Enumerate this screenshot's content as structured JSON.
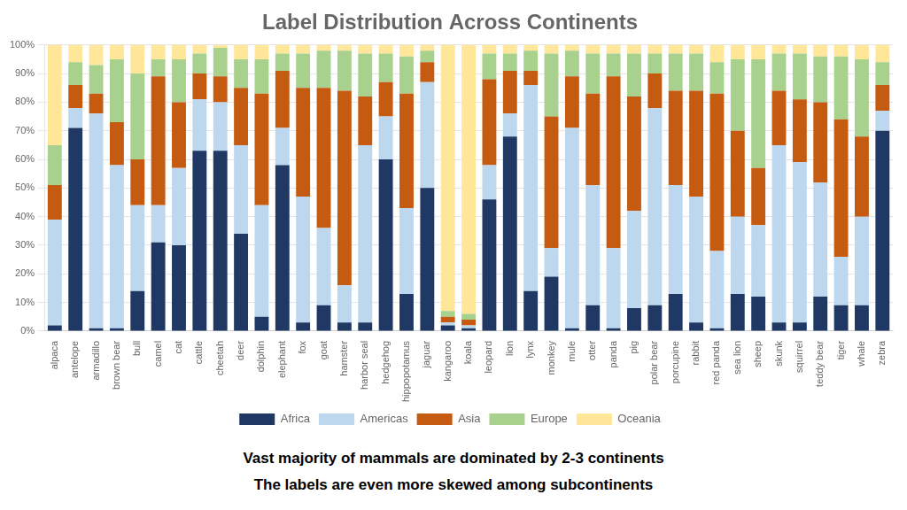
{
  "chart_data": {
    "type": "bar",
    "title": "Label Distribution Across Continents",
    "categories": [
      "alpaca",
      "antelope",
      "armadillo",
      "brown bear",
      "bull",
      "camel",
      "cat",
      "cattle",
      "cheetah",
      "deer",
      "dolphin",
      "elephant",
      "fox",
      "goat",
      "hamster",
      "harbor seal",
      "hedgehog",
      "hippopotamus",
      "jaguar",
      "kangaroo",
      "koala",
      "leopard",
      "lion",
      "lynx",
      "monkey",
      "mule",
      "otter",
      "panda",
      "pig",
      "polar bear",
      "porcupine",
      "rabbit",
      "red panda",
      "sea lion",
      "sheep",
      "skunk",
      "squirrel",
      "teddy bear",
      "tiger",
      "whale",
      "zebra"
    ],
    "series": [
      {
        "name": "Africa",
        "color": "#1F3864",
        "values": [
          0.02,
          0.71,
          0.01,
          0.01,
          0.14,
          0.31,
          0.3,
          0.63,
          0.63,
          0.34,
          0.05,
          0.58,
          0.03,
          0.09,
          0.03,
          0.03,
          0.6,
          0.13,
          0.5,
          0.02,
          0.01,
          0.46,
          0.68,
          0.14,
          0.19,
          0.01,
          0.09,
          0.01,
          0.08,
          0.09,
          0.13,
          0.03,
          0.01,
          0.13,
          0.12,
          0.03,
          0.03,
          0.12,
          0.09,
          0.09,
          0.7
        ]
      },
      {
        "name": "Americas",
        "color": "#BDD7EE",
        "values": [
          0.37,
          0.07,
          0.75,
          0.57,
          0.3,
          0.13,
          0.27,
          0.18,
          0.17,
          0.31,
          0.39,
          0.13,
          0.44,
          0.27,
          0.13,
          0.62,
          0.15,
          0.3,
          0.37,
          0.01,
          0.01,
          0.12,
          0.08,
          0.72,
          0.1,
          0.7,
          0.42,
          0.28,
          0.34,
          0.69,
          0.38,
          0.44,
          0.27,
          0.27,
          0.25,
          0.62,
          0.56,
          0.4,
          0.17,
          0.31,
          0.07
        ]
      },
      {
        "name": "Asia",
        "color": "#C55A11",
        "values": [
          0.12,
          0.08,
          0.07,
          0.15,
          0.16,
          0.45,
          0.23,
          0.09,
          0.09,
          0.2,
          0.39,
          0.2,
          0.38,
          0.49,
          0.68,
          0.17,
          0.12,
          0.4,
          0.07,
          0.02,
          0.02,
          0.3,
          0.15,
          0.05,
          0.46,
          0.18,
          0.32,
          0.6,
          0.4,
          0.12,
          0.33,
          0.37,
          0.55,
          0.3,
          0.2,
          0.19,
          0.22,
          0.28,
          0.48,
          0.28,
          0.09
        ]
      },
      {
        "name": "Europe",
        "color": "#A9D18E",
        "values": [
          0.14,
          0.08,
          0.1,
          0.22,
          0.3,
          0.06,
          0.15,
          0.07,
          0.1,
          0.1,
          0.12,
          0.06,
          0.12,
          0.13,
          0.14,
          0.15,
          0.1,
          0.13,
          0.04,
          0.02,
          0.02,
          0.09,
          0.06,
          0.07,
          0.22,
          0.09,
          0.14,
          0.08,
          0.15,
          0.07,
          0.13,
          0.13,
          0.11,
          0.25,
          0.38,
          0.13,
          0.16,
          0.16,
          0.22,
          0.27,
          0.08
        ]
      },
      {
        "name": "Oceania",
        "color": "#FFE699",
        "values": [
          0.35,
          0.06,
          0.07,
          0.05,
          0.1,
          0.05,
          0.05,
          0.03,
          0.01,
          0.05,
          0.05,
          0.03,
          0.03,
          0.02,
          0.02,
          0.03,
          0.03,
          0.04,
          0.02,
          0.93,
          0.94,
          0.03,
          0.03,
          0.02,
          0.03,
          0.02,
          0.03,
          0.03,
          0.03,
          0.03,
          0.03,
          0.03,
          0.06,
          0.05,
          0.05,
          0.03,
          0.03,
          0.04,
          0.04,
          0.05,
          0.06
        ]
      }
    ],
    "stacked": true,
    "ylim": [
      0,
      1
    ],
    "yticks": [
      {
        "value": 0,
        "label": "0%"
      },
      {
        "value": 0.1,
        "label": "10%"
      },
      {
        "value": 0.2,
        "label": "20%"
      },
      {
        "value": 0.3,
        "label": "30%"
      },
      {
        "value": 0.4,
        "label": "40%"
      },
      {
        "value": 0.5,
        "label": "50%"
      },
      {
        "value": 0.6,
        "label": "60%"
      },
      {
        "value": 0.7,
        "label": "70%"
      },
      {
        "value": 0.8,
        "label": "80%"
      },
      {
        "value": 0.9,
        "label": "90%"
      },
      {
        "value": 1,
        "label": "100%"
      }
    ],
    "grid": true,
    "legend": "bottom",
    "annotations": [
      "Vast majority of mammals are dominated by 2-3 continents",
      "The labels are even more skewed among subcontinents"
    ]
  }
}
